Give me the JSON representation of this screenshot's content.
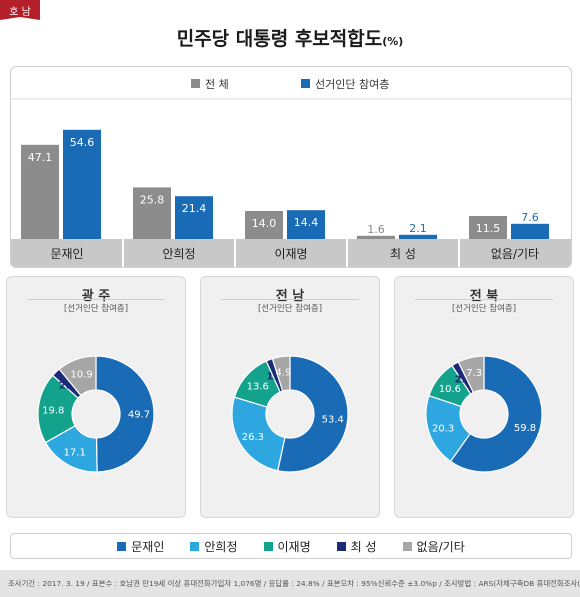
{
  "region_tag": "호 남",
  "title": "민주당 대통령 후보적합도",
  "title_unit": "(%)",
  "colors": {
    "overall": "#8c8c8c",
    "participants": "#1a6bb5",
    "moon": "#1a6bb5",
    "ahn": "#2ea6e0",
    "lee": "#13a38c",
    "choi": "#1c2a7a",
    "none": "#a6a6a6"
  },
  "chart_data": [
    {
      "type": "bar",
      "title": "민주당 대통령 후보적합도",
      "categories": [
        "문재인",
        "안희정",
        "이재명",
        "최 성",
        "없음/기타"
      ],
      "series": [
        {
          "name": "전 체",
          "values": [
            47.1,
            25.8,
            14.0,
            1.6,
            11.5
          ]
        },
        {
          "name": "선거인단 참여층",
          "values": [
            54.6,
            21.4,
            14.4,
            2.1,
            7.6
          ]
        }
      ],
      "ylim": [
        0,
        60
      ],
      "legend_position": "top"
    },
    {
      "type": "pie",
      "title": "광 주",
      "subtitle": "[선거인단 참여층]",
      "labels": [
        "문재인",
        "안희정",
        "이재명",
        "최 성",
        "없음/기타"
      ],
      "values": [
        49.7,
        17.1,
        19.8,
        2.5,
        10.9
      ]
    },
    {
      "type": "pie",
      "title": "전 남",
      "subtitle": "[선거인단 참여층]",
      "labels": [
        "문재인",
        "안희정",
        "이재명",
        "최 성",
        "없음/기타"
      ],
      "values": [
        53.4,
        26.3,
        13.6,
        1.8,
        4.9
      ]
    },
    {
      "type": "pie",
      "title": "전 북",
      "subtitle": "[선거인단 참여층]",
      "labels": [
        "문재인",
        "안희정",
        "이재명",
        "최 성",
        "없음/기타"
      ],
      "values": [
        59.8,
        20.3,
        10.6,
        2.0,
        7.3
      ]
    }
  ],
  "legend": [
    "문재인",
    "안희정",
    "이재명",
    "최 성",
    "없음/기타"
  ],
  "footer": "조사기간 : 2017. 3. 19  /  표본수 : 호남권 만19세 이상 휴대전화가입자 1,076명  /  응답률 : 24.8%  /  표본오차 : 95%신뢰수준 ±3.0%p  /  조사방법 : ARS(자체구축DB 휴대전화조사(100%))  /  조사기관 : 리서치뷰"
}
